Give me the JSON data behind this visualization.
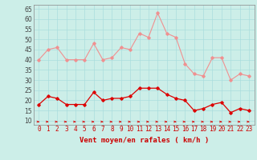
{
  "x": [
    0,
    1,
    2,
    3,
    4,
    5,
    6,
    7,
    8,
    9,
    10,
    11,
    12,
    13,
    14,
    15,
    16,
    17,
    18,
    19,
    20,
    21,
    22,
    23
  ],
  "rafales": [
    40,
    45,
    46,
    40,
    40,
    40,
    48,
    40,
    41,
    46,
    45,
    53,
    51,
    63,
    53,
    51,
    38,
    33,
    32,
    41,
    41,
    30,
    33,
    32
  ],
  "moyen": [
    18,
    22,
    21,
    18,
    18,
    18,
    24,
    20,
    21,
    21,
    22,
    26,
    26,
    26,
    23,
    21,
    20,
    15,
    16,
    18,
    19,
    14,
    16,
    15
  ],
  "bg_color": "#cceee8",
  "grid_color": "#aadddd",
  "line_color_rafales": "#f09090",
  "line_color_moyen": "#dd0000",
  "arrow_color": "#dd0000",
  "xlabel": "Vent moyen/en rafales ( km/h )",
  "xlabel_color": "#cc0000",
  "ylim": [
    8,
    67
  ],
  "yticks": [
    10,
    15,
    20,
    25,
    30,
    35,
    40,
    45,
    50,
    55,
    60,
    65
  ],
  "xticks": [
    0,
    1,
    2,
    3,
    4,
    5,
    6,
    7,
    8,
    9,
    10,
    11,
    12,
    13,
    14,
    15,
    16,
    17,
    18,
    19,
    20,
    21,
    22,
    23
  ],
  "tick_fontsize": 5.5,
  "label_fontsize": 6.5
}
